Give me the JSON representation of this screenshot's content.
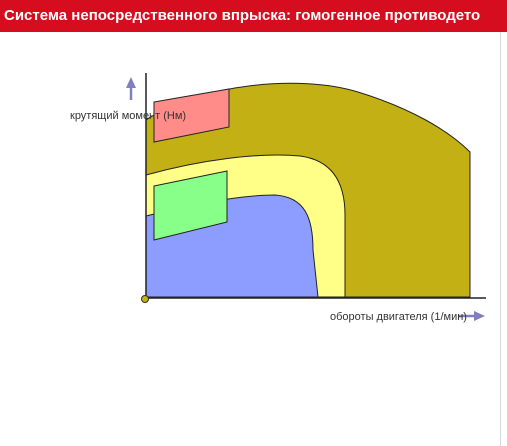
{
  "title": "Система непосредственного впрыска: гомогенное противодето",
  "diagram": {
    "y_axis_label": "крутящий момент (Нм)",
    "x_axis_label": "обороты двигателя (1/мин)"
  },
  "colors": {
    "title_bar": "#d50d1f",
    "outer_region": "#c2b015",
    "middle_region": "#ffff88",
    "inner_region": "#8c9cff",
    "upper_box": "#ff8c88",
    "lower_box": "#88ff88",
    "axis_arrow": "#8080c0"
  }
}
